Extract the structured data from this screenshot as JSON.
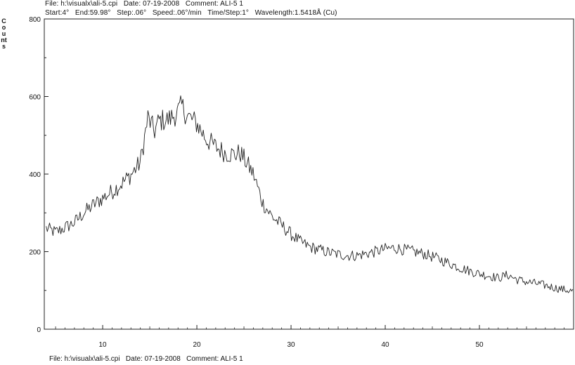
{
  "header": {
    "line1": "File: h:\\visualx\\ali-5.cpi   Date: 07-19-2008   Comment: ALI-5 1",
    "line2": "Start:4°   End:59.98°   Step:.06°   Speed:.06°/min   Time/Step:1°   Wavelength:1.5418Å (Cu)"
  },
  "footer": {
    "line": "File: h:\\visualx\\ali-5.cpi   Date: 07-19-2008   Comment: ALI-5 1"
  },
  "chart_data": {
    "type": "line",
    "title": "",
    "xlabel": "",
    "ylabel": "Counts",
    "xlim": [
      3.8,
      60.0
    ],
    "ylim": [
      0,
      800
    ],
    "x_ticks": [
      10,
      20,
      30,
      40,
      50
    ],
    "y_ticks": [
      0,
      200,
      400,
      600,
      800
    ],
    "grid": false,
    "line_color": "#222222",
    "series": [
      {
        "x": [
          4,
          5,
          6,
          7,
          8,
          9,
          10,
          11,
          12,
          13,
          14,
          14.8,
          15.5,
          16,
          17,
          18,
          18.4,
          19,
          20,
          21,
          22,
          23,
          24,
          24.6,
          25,
          26,
          27,
          28,
          29,
          30,
          31,
          32,
          33,
          34,
          35,
          36,
          37,
          38,
          39,
          40,
          41,
          42,
          43,
          44,
          45,
          46,
          47,
          48,
          49,
          50,
          51,
          52,
          53,
          54,
          55,
          56,
          57,
          58,
          59,
          59.98
        ],
        "y": [
          260,
          250,
          262,
          275,
          300,
          320,
          338,
          355,
          375,
          398,
          430,
          545,
          510,
          538,
          540,
          560,
          575,
          550,
          530,
          490,
          470,
          455,
          450,
          455,
          440,
          400,
          325,
          290,
          268,
          245,
          225,
          212,
          205,
          198,
          193,
          190,
          190,
          195,
          200,
          207,
          210,
          205,
          200,
          195,
          187,
          178,
          168,
          158,
          150,
          143,
          138,
          132,
          140,
          128,
          122,
          118,
          113,
          107,
          102,
          98
        ]
      }
    ]
  }
}
